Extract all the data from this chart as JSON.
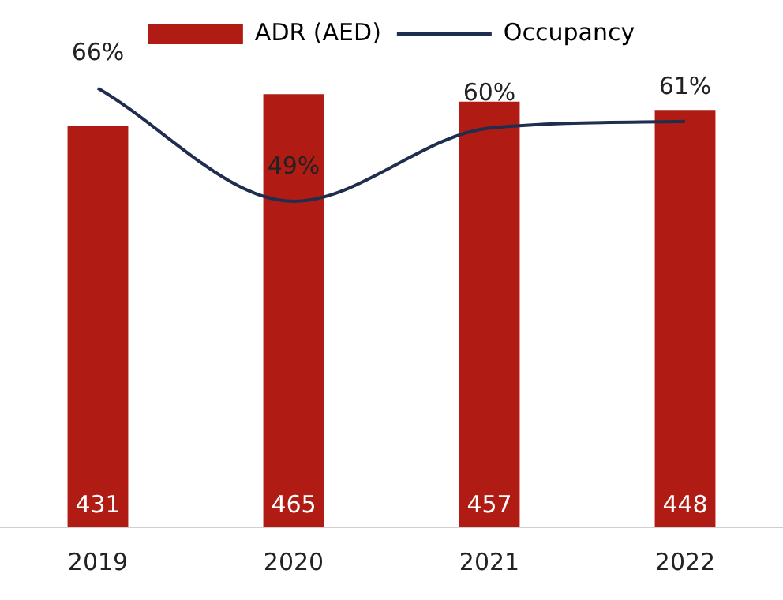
{
  "chart_data": {
    "type": "bar",
    "categories": [
      "2019",
      "2020",
      "2021",
      "2022"
    ],
    "series": [
      {
        "name": "ADR (AED)",
        "type": "bar",
        "color": "#b01c14",
        "values": [
          431,
          465,
          457,
          448
        ]
      },
      {
        "name": "Occupancy",
        "type": "line",
        "axis": "y2",
        "color": "#1f2d4e",
        "values": [
          66,
          49,
          60,
          61
        ],
        "value_labels": [
          "66%",
          "49%",
          "60%",
          "61%"
        ]
      }
    ],
    "tick_labels": "x",
    "grid": false,
    "legend": "top",
    "marker": "none",
    "line_style": "solid",
    "data_labels": true
  }
}
